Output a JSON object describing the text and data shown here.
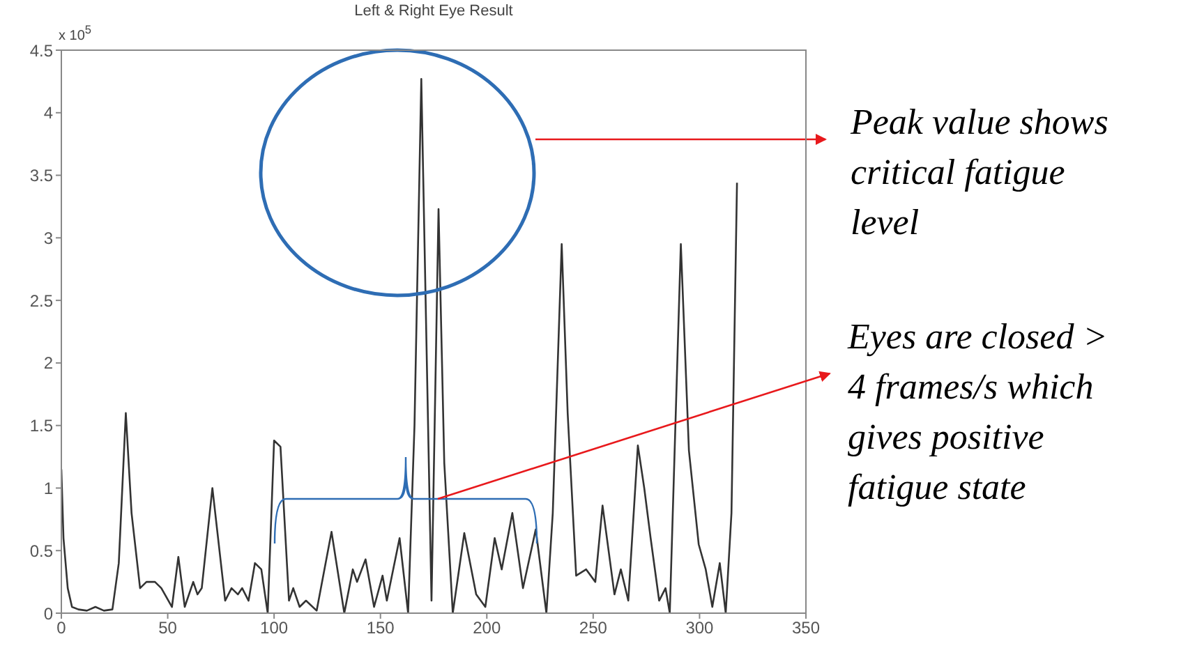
{
  "chart_data": {
    "type": "line",
    "title": "Left & Right Eye Result",
    "x": [
      0,
      1,
      3,
      5,
      8,
      12,
      16,
      20,
      24,
      27,
      30.3,
      33,
      37,
      40,
      44,
      47,
      52,
      55,
      58,
      62,
      64,
      66,
      71,
      77,
      80,
      83,
      85,
      88,
      91,
      94,
      97,
      100,
      103,
      107,
      109,
      112,
      115,
      120,
      127,
      133,
      137,
      139,
      143,
      147,
      151,
      153,
      159,
      163,
      166,
      169.2,
      174,
      177.3,
      180,
      184,
      189.4,
      195,
      199.3,
      203.7,
      207,
      212,
      217,
      223,
      228,
      231,
      235.2,
      238,
      242,
      246.7,
      251,
      254.4,
      260,
      263,
      266.5,
      271,
      274,
      277,
      281,
      284,
      286,
      291.2,
      295,
      299.6,
      302.9,
      306,
      309.5,
      312.3,
      315,
      317.6
    ],
    "series": [
      {
        "color": "#333333",
        "values": [
          1.15,
          0.6,
          0.2,
          0.05,
          0.03,
          0.02,
          0.05,
          0.02,
          0.03,
          0.4,
          1.6,
          0.8,
          0.2,
          0.25,
          0.25,
          0.2,
          0.05,
          0.45,
          0.05,
          0.25,
          0.15,
          0.2,
          1.0,
          0.1,
          0.2,
          0.15,
          0.2,
          0.1,
          0.4,
          0.35,
          0.0,
          1.38,
          1.33,
          0.1,
          0.2,
          0.05,
          0.1,
          0.02,
          0.65,
          0.0,
          0.35,
          0.25,
          0.43,
          0.05,
          0.3,
          0.1,
          0.6,
          0.0,
          1.5,
          4.27,
          0.1,
          3.23,
          1.2,
          0.0,
          0.64,
          0.15,
          0.05,
          0.6,
          0.35,
          0.8,
          0.2,
          0.67,
          0.0,
          0.8,
          2.95,
          1.6,
          0.3,
          0.35,
          0.25,
          0.86,
          0.15,
          0.35,
          0.1,
          1.34,
          1.0,
          0.6,
          0.1,
          0.2,
          0.0,
          2.95,
          1.3,
          0.55,
          0.35,
          0.05,
          0.4,
          0.0,
          0.8,
          3.44
        ]
      }
    ],
    "xlim": [
      0,
      350
    ],
    "xticks": [
      0,
      50,
      100,
      150,
      200,
      250,
      300,
      350
    ],
    "ylim": [
      0,
      4.5
    ],
    "yticks": [
      0,
      0.5,
      1,
      1.5,
      2,
      2.5,
      3,
      3.5,
      4,
      4.5
    ],
    "grid": false,
    "legend": false,
    "marker": "none",
    "line_style": "solid",
    "annotations": [
      "x 10$^{5}$",
      "Peak value shows critical fatigue level",
      "Eyes are closed > 4 frames/s which gives positive fatigue state"
    ]
  }
}
